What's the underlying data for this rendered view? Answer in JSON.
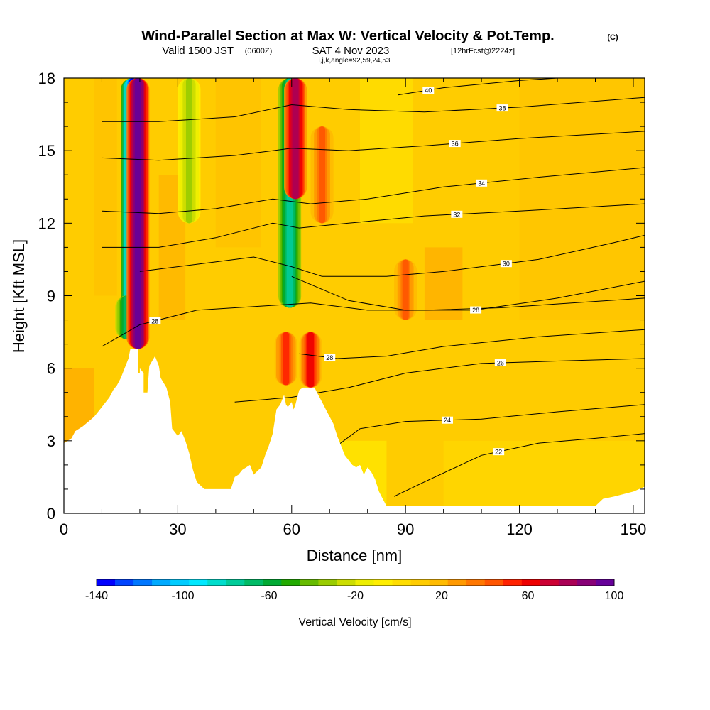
{
  "title": {
    "main": "Wind-Parallel Section at Max W: Vertical Velocity & Pot.Temp.",
    "main_suffix": "(C)",
    "valid_prefix": "Valid 1500 JST",
    "valid_utc": "(0600Z)",
    "valid_date": "SAT 4 Nov 2023",
    "forecast": "[12hrFcst@2224z]",
    "params": "i,j,k,angle=92,59,24,53"
  },
  "chart_data": {
    "type": "heatmap",
    "xlabel": "Distance [nm]",
    "ylabel": "Height [Kft MSL]",
    "xlim": [
      0,
      153
    ],
    "ylim": [
      0,
      18
    ],
    "x_ticks": [
      "0",
      "30",
      "60",
      "90",
      "120",
      "150"
    ],
    "y_ticks": [
      "0",
      "3",
      "6",
      "9",
      "12",
      "15",
      "18"
    ],
    "colorbar": {
      "label": "Vertical Velocity [cm/s]",
      "range": [
        -140,
        100
      ],
      "tick_values": [
        "-140",
        "-100",
        "-60",
        "-20",
        "20",
        "60",
        "100"
      ],
      "colors": [
        "#0000ff",
        "#0044ff",
        "#0077ff",
        "#00aaff",
        "#00ccff",
        "#00e8ff",
        "#00ddcc",
        "#00cc99",
        "#00bb66",
        "#00aa33",
        "#22aa00",
        "#66bb00",
        "#99cc00",
        "#ccdd00",
        "#eeee00",
        "#ffee00",
        "#ffdd00",
        "#ffcc00",
        "#ffbb00",
        "#ff9900",
        "#ff7700",
        "#ff5500",
        "#ff2200",
        "#ee0000",
        "#cc0033",
        "#aa0055",
        "#880077",
        "#660099"
      ]
    },
    "updraft_bands": [
      {
        "x": 19.5,
        "ybot": 6.8,
        "ytop": 18,
        "peak": 100
      },
      {
        "x": 61,
        "ybot": 13,
        "ytop": 18,
        "peak": 80
      },
      {
        "x": 65,
        "ybot": 5.2,
        "ytop": 7.5,
        "peak": 60
      },
      {
        "x": 58.5,
        "ybot": 5.3,
        "ytop": 7.5,
        "peak": 50
      },
      {
        "x": 68,
        "ybot": 12,
        "ytop": 16,
        "peak": 40
      },
      {
        "x": 90,
        "ybot": 8,
        "ytop": 10.5,
        "peak": 40
      }
    ],
    "downdraft_bands": [
      {
        "x": 18,
        "ybot": 7.5,
        "ytop": 18,
        "peak": -140
      },
      {
        "x": 59.5,
        "ybot": 8.5,
        "ytop": 18,
        "peak": -80
      },
      {
        "x": 16.5,
        "ybot": 7.2,
        "ytop": 9,
        "peak": -70
      },
      {
        "x": 33,
        "ybot": 12,
        "ytop": 18,
        "peak": -30
      }
    ],
    "theta_contours": [
      {
        "level": "22",
        "points": [
          [
            87,
            0.7
          ],
          [
            95,
            1.3
          ],
          [
            110,
            2.4
          ],
          [
            125,
            2.9
          ],
          [
            140,
            3.1
          ],
          [
            153,
            3.3
          ]
        ],
        "label_x": 114.5
      },
      {
        "level": "24",
        "points": [
          [
            72,
            2.8
          ],
          [
            78,
            3.5
          ],
          [
            90,
            3.8
          ],
          [
            110,
            3.9
          ],
          [
            130,
            4.2
          ],
          [
            153,
            4.5
          ]
        ],
        "label_x": 101
      },
      {
        "level": "26",
        "points": [
          [
            45,
            4.6
          ],
          [
            60,
            4.8
          ],
          [
            75,
            5.2
          ],
          [
            90,
            5.8
          ],
          [
            110,
            6.2
          ],
          [
            130,
            6.3
          ],
          [
            153,
            6.4
          ]
        ],
        "label_x": 115
      },
      {
        "level": "28",
        "points": [
          [
            10,
            6.9
          ],
          [
            20,
            7.8
          ],
          [
            35,
            8.4
          ],
          [
            55,
            8.6
          ],
          [
            65,
            8.7
          ],
          [
            80,
            8.4
          ],
          [
            95,
            8.4
          ],
          [
            115,
            8.5
          ],
          [
            153,
            8.9
          ]
        ],
        "label_x": 24
      },
      {
        "level": "28",
        "points": [
          [
            62,
            6.6
          ],
          [
            72,
            6.4
          ],
          [
            85,
            6.5
          ],
          [
            100,
            6.9
          ],
          [
            125,
            7.3
          ],
          [
            153,
            7.6
          ]
        ],
        "label_x": 70
      },
      {
        "level": "28",
        "points": [
          [
            60,
            9.8
          ],
          [
            75,
            8.8
          ],
          [
            90,
            8.4
          ],
          [
            108,
            8.4
          ],
          [
            130,
            8.9
          ],
          [
            153,
            9.6
          ]
        ],
        "label_x": 108.5
      },
      {
        "level": "30",
        "points": [
          [
            20,
            10
          ],
          [
            35,
            10.3
          ],
          [
            50,
            10.6
          ],
          [
            60,
            10.2
          ],
          [
            68,
            9.8
          ],
          [
            85,
            9.8
          ],
          [
            100,
            10.0
          ],
          [
            125,
            10.5
          ],
          [
            145,
            11.2
          ],
          [
            153,
            11.5
          ]
        ],
        "label_x": 116.5
      },
      {
        "level": "32",
        "points": [
          [
            10,
            11
          ],
          [
            25,
            11
          ],
          [
            40,
            11.4
          ],
          [
            55,
            12
          ],
          [
            62,
            11.8
          ],
          [
            75,
            12
          ],
          [
            95,
            12.3
          ],
          [
            120,
            12.5
          ],
          [
            153,
            12.8
          ]
        ],
        "label_x": 103.5
      },
      {
        "level": "34",
        "points": [
          [
            10,
            12.5
          ],
          [
            25,
            12.4
          ],
          [
            40,
            12.6
          ],
          [
            55,
            13
          ],
          [
            65,
            12.8
          ],
          [
            80,
            13.0
          ],
          [
            100,
            13.5
          ],
          [
            125,
            13.9
          ],
          [
            153,
            14.3
          ]
        ],
        "label_x": 110
      },
      {
        "level": "36",
        "points": [
          [
            10,
            14.7
          ],
          [
            25,
            14.6
          ],
          [
            45,
            14.8
          ],
          [
            60,
            15.1
          ],
          [
            75,
            15.0
          ],
          [
            95,
            15.2
          ],
          [
            120,
            15.5
          ],
          [
            153,
            15.8
          ]
        ],
        "label_x": 103
      },
      {
        "level": "38",
        "points": [
          [
            10,
            16.2
          ],
          [
            25,
            16.2
          ],
          [
            45,
            16.4
          ],
          [
            60,
            16.9
          ],
          [
            75,
            16.7
          ],
          [
            95,
            16.6
          ],
          [
            120,
            16.8
          ],
          [
            153,
            17.2
          ]
        ],
        "label_x": 115.5
      },
      {
        "level": "40",
        "points": [
          [
            88,
            17.3
          ],
          [
            100,
            17.6
          ],
          [
            120,
            17.9
          ],
          [
            130,
            18
          ]
        ],
        "label_x": 96
      }
    ]
  }
}
